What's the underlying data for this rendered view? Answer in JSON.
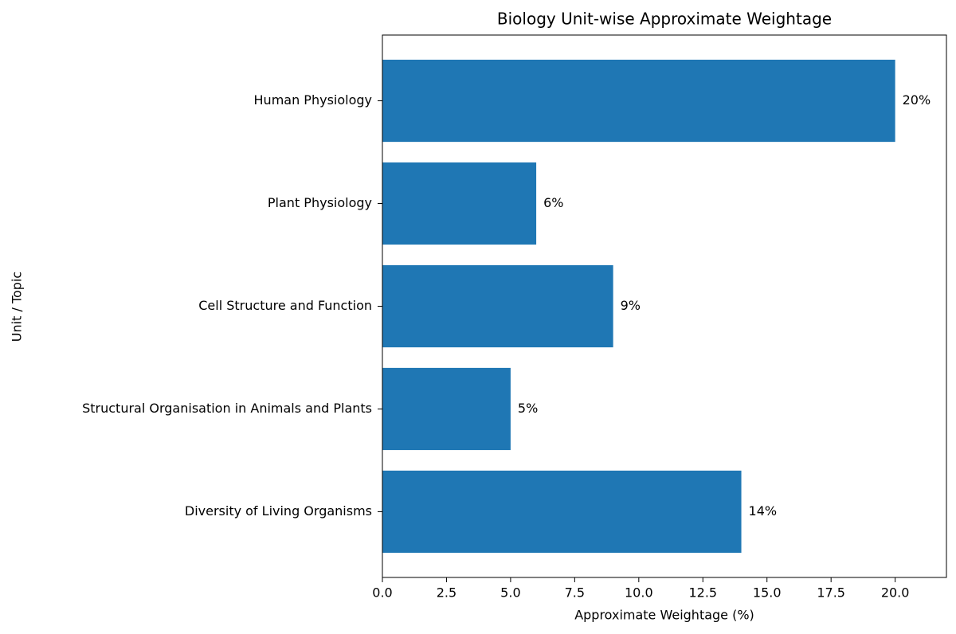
{
  "chart_data": {
    "type": "barh",
    "title": "Biology Unit-wise Approximate Weightage",
    "xlabel": "Approximate Weightage (%)",
    "ylabel": "Unit / Topic",
    "categories": [
      "Diversity of Living Organisms",
      "Structural Organisation in Animals and Plants",
      "Cell Structure and Function",
      "Plant Physiology",
      "Human Physiology"
    ],
    "values": [
      14,
      5,
      9,
      6,
      20
    ],
    "value_labels": [
      "14%",
      "5%",
      "9%",
      "6%",
      "20%"
    ],
    "color": "#1f77b4",
    "xlim": [
      0,
      22
    ],
    "xticks": [
      {
        "value": 0,
        "label": "0.0"
      },
      2.5,
      {
        "value": 5,
        "label": "5.0"
      },
      7.5,
      {
        "value": 10,
        "label": "10.0"
      },
      12.5,
      {
        "value": 15,
        "label": "15.0"
      },
      17.5,
      {
        "value": 20,
        "label": "20.0"
      }
    ],
    "grid": false
  }
}
